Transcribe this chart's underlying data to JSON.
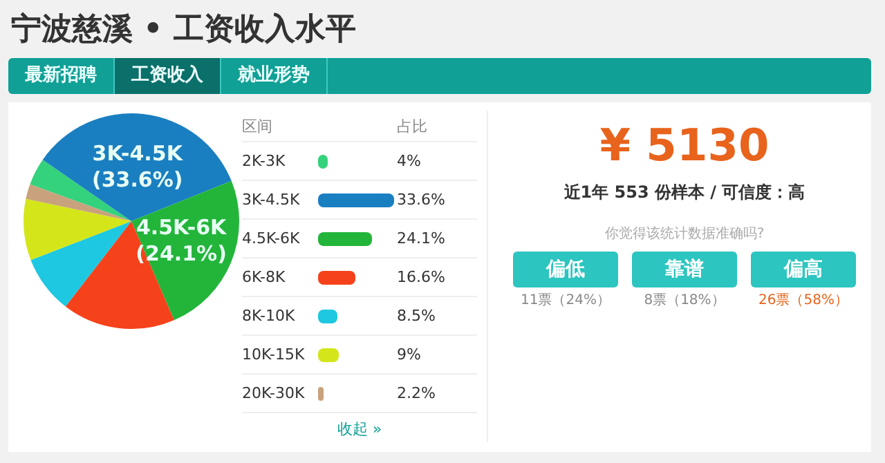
{
  "chart_data": {
    "type": "pie",
    "title": "宁波慈溪 • 工资收入水平",
    "categories": [
      "2K-3K",
      "3K-4.5K",
      "4.5K-6K",
      "6K-8K",
      "8K-10K",
      "10K-15K",
      "20K-30K"
    ],
    "values": [
      4,
      33.6,
      24.1,
      16.6,
      8.5,
      9,
      2.2
    ],
    "value_labels": [
      "4%",
      "33.6%",
      "24.1%",
      "16.6%",
      "8.5%",
      "9%",
      "2.2%"
    ],
    "colors": [
      "#34d27c",
      "#1a7fc1",
      "#22b53a",
      "#f5421b",
      "#1ec8e0",
      "#d4e61a",
      "#c8a27c"
    ],
    "legend": "right",
    "annotations": [
      "最新招聘",
      "工资收入",
      "就业形势",
      "区间",
      "占比",
      "收起 »",
      "¥ 5130",
      "近1年 553 份样本 / 可信度：高",
      "你觉得该统计数据准确吗?",
      "偏低",
      "靠谱",
      "偏高",
      "11票（24%）",
      "8票（18%）",
      "26票（58%）",
      {
        "text": "(33.6%)",
        "x": "3K-4.5K"
      },
      {
        "text": "(24.1%)",
        "x": "4.5K-6K"
      }
    ]
  }
}
